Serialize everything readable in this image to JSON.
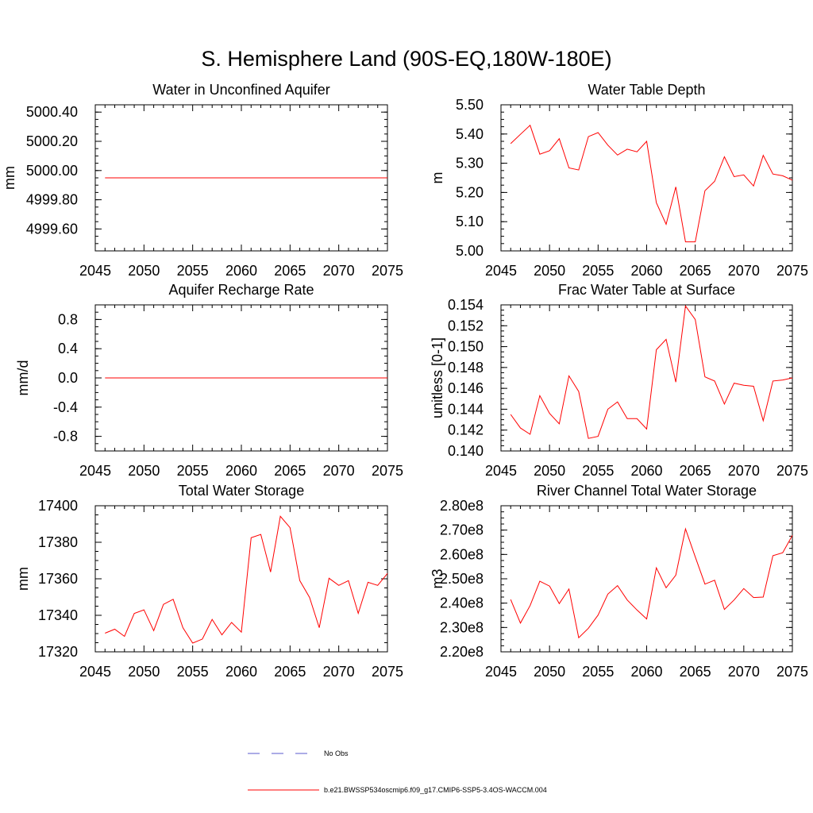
{
  "figure": {
    "title": "S. Hemisphere Land (90S-EQ,180W-180E)",
    "line_color": "#ff0000",
    "obs_color": "#5a5acd",
    "legend": {
      "obs_label": "No Obs",
      "model_label": "b.e21.BWSSP534oscmip6.f09_g17.CMIP6-SSP5-3.4OS-WACCM.004"
    }
  },
  "chart_data": [
    {
      "id": "aquifer",
      "type": "line",
      "title": "Water in Unconfined Aquifer",
      "ylabel": "mm",
      "xlim": [
        2045,
        2075
      ],
      "ylim": [
        4999.45,
        5000.45
      ],
      "xticks": [
        2045,
        2050,
        2055,
        2060,
        2065,
        2070,
        2075
      ],
      "yticks": [
        4999.6,
        4999.8,
        5000.0,
        5000.2,
        5000.4
      ],
      "ytick_labels": [
        "4999.60",
        "4999.80",
        "5000.00",
        "5000.20",
        "5000.40"
      ],
      "x": [
        2046,
        2047,
        2048,
        2049,
        2050,
        2051,
        2052,
        2053,
        2054,
        2055,
        2056,
        2057,
        2058,
        2059,
        2060,
        2061,
        2062,
        2063,
        2064,
        2065,
        2066,
        2067,
        2068,
        2069,
        2070,
        2071,
        2072,
        2073,
        2074,
        2075
      ],
      "values": [
        4999.95,
        4999.95,
        4999.95,
        4999.95,
        4999.95,
        4999.95,
        4999.95,
        4999.95,
        4999.95,
        4999.95,
        4999.95,
        4999.95,
        4999.95,
        4999.95,
        4999.95,
        4999.95,
        4999.95,
        4999.95,
        4999.95,
        4999.95,
        4999.95,
        4999.95,
        4999.95,
        4999.95,
        4999.95,
        4999.95,
        4999.95,
        4999.95,
        4999.95,
        4999.95
      ]
    },
    {
      "id": "wtd",
      "type": "line",
      "title": "Water Table Depth",
      "ylabel": "m",
      "xlim": [
        2045,
        2075
      ],
      "ylim": [
        5.0,
        5.5
      ],
      "xticks": [
        2045,
        2050,
        2055,
        2060,
        2065,
        2070,
        2075
      ],
      "yticks": [
        5.0,
        5.1,
        5.2,
        5.3,
        5.4,
        5.5
      ],
      "ytick_labels": [
        "5.00",
        "5.10",
        "5.20",
        "5.30",
        "5.40",
        "5.50"
      ],
      "x": [
        2046,
        2047,
        2048,
        2049,
        2050,
        2051,
        2052,
        2053,
        2054,
        2055,
        2056,
        2057,
        2058,
        2059,
        2060,
        2061,
        2062,
        2063,
        2064,
        2065,
        2066,
        2067,
        2068,
        2069,
        2070,
        2071,
        2072,
        2073,
        2074,
        2075
      ],
      "values": [
        5.367,
        5.399,
        5.43,
        5.331,
        5.343,
        5.384,
        5.284,
        5.277,
        5.391,
        5.405,
        5.362,
        5.328,
        5.348,
        5.339,
        5.375,
        5.165,
        5.091,
        5.219,
        5.031,
        5.031,
        5.206,
        5.238,
        5.322,
        5.254,
        5.26,
        5.222,
        5.327,
        5.263,
        5.257,
        5.242
      ]
    },
    {
      "id": "recharge",
      "type": "line",
      "title": "Aquifer Recharge Rate",
      "ylabel": "mm/d",
      "xlim": [
        2045,
        2075
      ],
      "ylim": [
        -1.0,
        1.0
      ],
      "xticks": [
        2045,
        2050,
        2055,
        2060,
        2065,
        2070,
        2075
      ],
      "yticks": [
        -0.8,
        -0.4,
        0.0,
        0.4,
        0.8
      ],
      "ytick_labels": [
        "-0.8",
        "-0.4",
        "0.0",
        "0.4",
        "0.8"
      ],
      "x": [
        2046,
        2047,
        2048,
        2049,
        2050,
        2051,
        2052,
        2053,
        2054,
        2055,
        2056,
        2057,
        2058,
        2059,
        2060,
        2061,
        2062,
        2063,
        2064,
        2065,
        2066,
        2067,
        2068,
        2069,
        2070,
        2071,
        2072,
        2073,
        2074,
        2075
      ],
      "values": [
        0,
        0,
        0,
        0,
        0,
        0,
        0,
        0,
        0,
        0,
        0,
        0,
        0,
        0,
        0,
        0,
        0,
        0,
        0,
        0,
        0,
        0,
        0,
        0,
        0,
        0,
        0,
        0,
        0,
        0
      ]
    },
    {
      "id": "fwts",
      "type": "line",
      "title": "Frac Water Table at Surface",
      "ylabel": "unitless [0-1]",
      "xlim": [
        2045,
        2075
      ],
      "ylim": [
        0.14,
        0.154
      ],
      "xticks": [
        2045,
        2050,
        2055,
        2060,
        2065,
        2070,
        2075
      ],
      "yticks": [
        0.14,
        0.142,
        0.144,
        0.146,
        0.148,
        0.15,
        0.152,
        0.154
      ],
      "ytick_labels": [
        "0.140",
        "0.142",
        "0.144",
        "0.146",
        "0.148",
        "0.150",
        "0.152",
        "0.154"
      ],
      "x": [
        2046,
        2047,
        2048,
        2049,
        2050,
        2051,
        2052,
        2053,
        2054,
        2055,
        2056,
        2057,
        2058,
        2059,
        2060,
        2061,
        2062,
        2063,
        2064,
        2065,
        2066,
        2067,
        2068,
        2069,
        2070,
        2071,
        2072,
        2073,
        2074,
        2075
      ],
      "values": [
        0.1435,
        0.1422,
        0.1416,
        0.1453,
        0.1436,
        0.1426,
        0.1472,
        0.1457,
        0.1412,
        0.1414,
        0.144,
        0.1447,
        0.1431,
        0.1431,
        0.1421,
        0.1497,
        0.1507,
        0.1466,
        0.1539,
        0.1526,
        0.1471,
        0.1467,
        0.1445,
        0.1465,
        0.1463,
        0.1462,
        0.1429,
        0.1467,
        0.1468,
        0.147
      ]
    },
    {
      "id": "tws",
      "type": "line",
      "title": "Total Water Storage",
      "ylabel": "mm",
      "xlim": [
        2045,
        2075
      ],
      "ylim": [
        17320,
        17400
      ],
      "xticks": [
        2045,
        2050,
        2055,
        2060,
        2065,
        2070,
        2075
      ],
      "yticks": [
        17320,
        17340,
        17360,
        17380,
        17400
      ],
      "ytick_labels": [
        "17320",
        "17340",
        "17360",
        "17380",
        "17400"
      ],
      "x": [
        2046,
        2047,
        2048,
        2049,
        2050,
        2051,
        2052,
        2053,
        2054,
        2055,
        2056,
        2057,
        2058,
        2059,
        2060,
        2061,
        2062,
        2063,
        2064,
        2065,
        2066,
        2067,
        2068,
        2069,
        2070,
        2071,
        2072,
        2073,
        2074,
        2075
      ],
      "values": [
        17330.2,
        17332.4,
        17328.5,
        17341.0,
        17343.0,
        17331.6,
        17346.0,
        17348.8,
        17333.2,
        17324.8,
        17327.0,
        17337.8,
        17329.3,
        17336.1,
        17330.8,
        17382.5,
        17384.3,
        17363.7,
        17394.2,
        17388.0,
        17359.0,
        17349.8,
        17333.2,
        17360.3,
        17356.4,
        17359.0,
        17341.1,
        17358.1,
        17356.4,
        17362.9
      ]
    },
    {
      "id": "river",
      "type": "line",
      "title": "River Channel Total Water Storage",
      "ylabel": "m3",
      "xlim": [
        2045,
        2075
      ],
      "ylim": [
        220000000,
        280000000
      ],
      "xticks": [
        2045,
        2050,
        2055,
        2060,
        2065,
        2070,
        2075
      ],
      "yticks": [
        220000000,
        230000000,
        240000000,
        250000000,
        260000000,
        270000000,
        280000000
      ],
      "ytick_labels": [
        "2.20e8",
        "2.30e8",
        "2.40e8",
        "2.50e8",
        "2.60e8",
        "2.70e8",
        "2.80e8"
      ],
      "x": [
        2046,
        2047,
        2048,
        2049,
        2050,
        2051,
        2052,
        2053,
        2054,
        2055,
        2056,
        2057,
        2058,
        2059,
        2060,
        2061,
        2062,
        2063,
        2064,
        2065,
        2066,
        2067,
        2068,
        2069,
        2070,
        2071,
        2072,
        2073,
        2074,
        2075
      ],
      "values": [
        241500000,
        231800000,
        239000000,
        249000000,
        247000000,
        239800000,
        245800000,
        225800000,
        229700000,
        235100000,
        243700000,
        247200000,
        241300000,
        237200000,
        233500000,
        254500000,
        246300000,
        251500000,
        270500000,
        259000000,
        247800000,
        249400000,
        237400000,
        241300000,
        246000000,
        242300000,
        242500000,
        259500000,
        260700000,
        267800000
      ]
    }
  ]
}
